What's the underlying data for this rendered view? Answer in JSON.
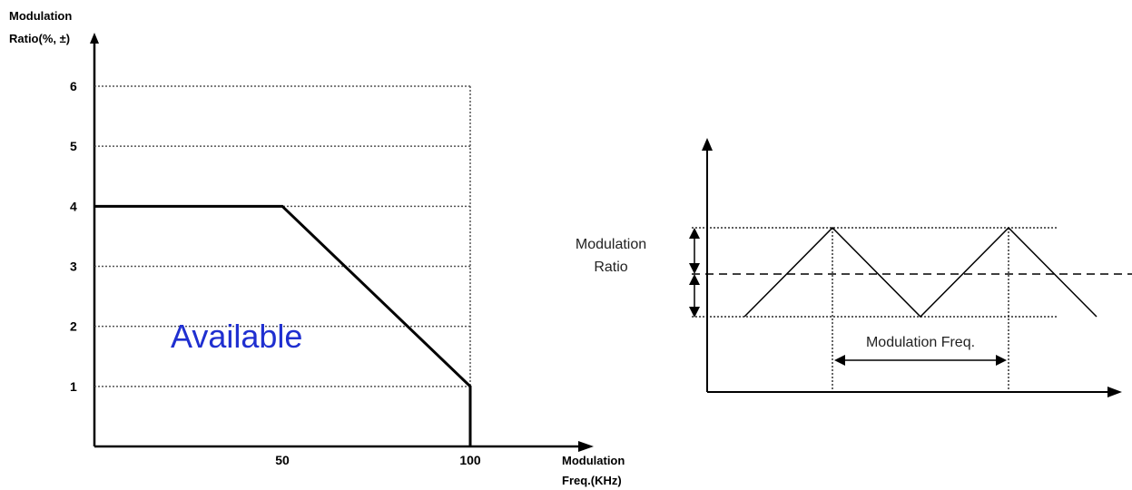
{
  "left_chart": {
    "y_axis_label_line1": "Modulation",
    "y_axis_label_line2": "Ratio(%, ±)",
    "x_axis_label_line1": "Modulation",
    "x_axis_label_line2": "Freq.(KHz)",
    "region_label": "Available",
    "region_label_color": "#1f2fd0"
  },
  "right_diagram": {
    "ratio_label_line1": "Modulation",
    "ratio_label_line2": "Ratio",
    "freq_label": "Modulation Freq."
  },
  "chart_data": {
    "type": "line",
    "title": "",
    "xlabel": "Modulation Freq.(KHz)",
    "ylabel": "Modulation Ratio(%, ±)",
    "x_ticks": [
      "50",
      "100"
    ],
    "y_ticks": [
      "1",
      "2",
      "3",
      "4",
      "5",
      "6"
    ],
    "xlim": [
      0,
      100
    ],
    "ylim": [
      0,
      6
    ],
    "grid": "dotted horizontal",
    "series": [
      {
        "x": [
          0,
          50,
          100,
          100
        ],
        "y": [
          4,
          4,
          1,
          0
        ]
      }
    ]
  }
}
